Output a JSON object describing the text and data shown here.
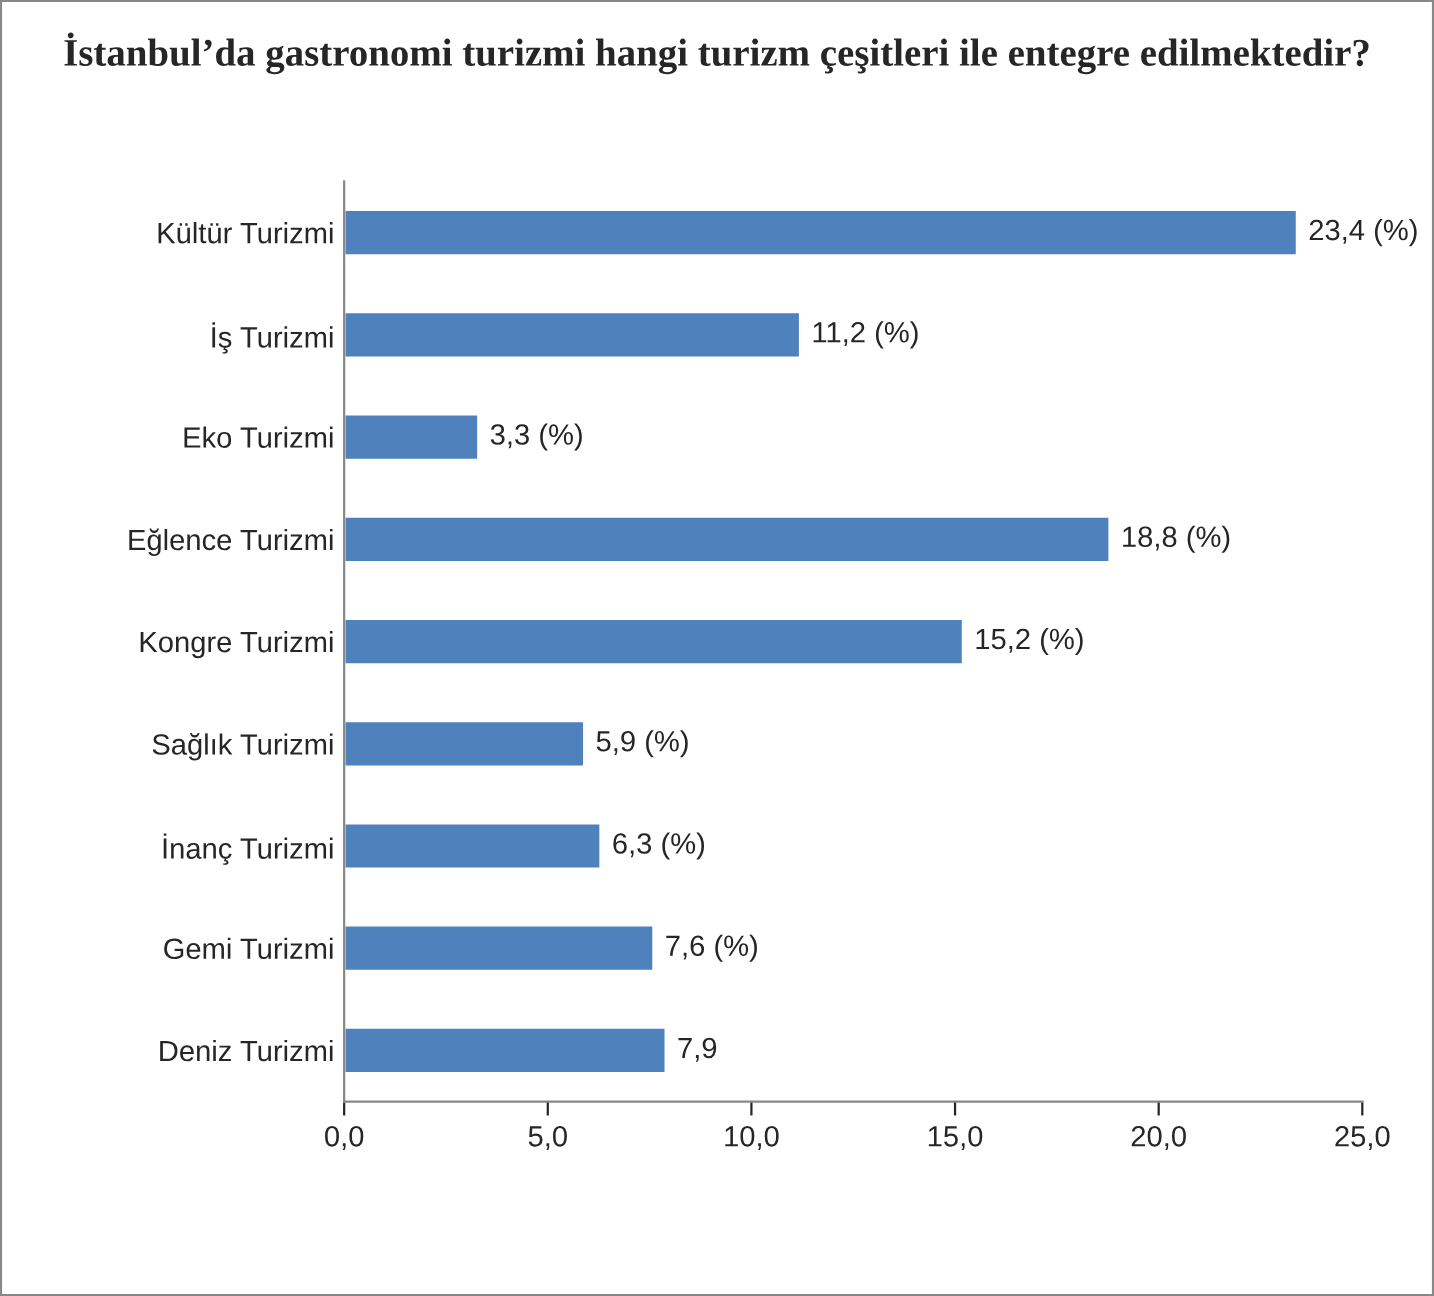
{
  "chart_data": {
    "type": "bar",
    "orientation": "horizontal",
    "title": "İstanbul’da gastronomi turizmi hangi turizm çeşitleri ile entegre edilmektedir?",
    "categories": [
      "Kültür Turizmi",
      "İş Turizmi",
      "Eko Turizmi",
      "Eğlence Turizmi",
      "Kongre Turizmi",
      "Sağlık Turizmi",
      "İnanç Turizmi",
      "Gemi Turizmi",
      "Deniz Turizmi"
    ],
    "values": [
      23.4,
      11.2,
      3.3,
      18.8,
      15.2,
      5.9,
      6.3,
      7.6,
      7.9
    ],
    "value_labels": [
      "23,4 (%)",
      "11,2 (%)",
      "3,3 (%)",
      "18,8 (%)",
      "15,2 (%)",
      "5,9 (%)",
      "6,3 (%)",
      "7,6 (%)",
      "7,9"
    ],
    "color": "#4f81bd",
    "xlim": [
      0,
      25
    ],
    "xticks": [
      {
        "value": 0,
        "label": "0,0"
      },
      {
        "value": 5,
        "label": "5,0"
      },
      {
        "value": 10,
        "label": "10,0"
      },
      {
        "value": 15,
        "label": "15,0"
      },
      {
        "value": 20,
        "label": "20,0"
      },
      {
        "value": 25,
        "label": "25,0"
      }
    ],
    "grid": false,
    "legend": false
  }
}
